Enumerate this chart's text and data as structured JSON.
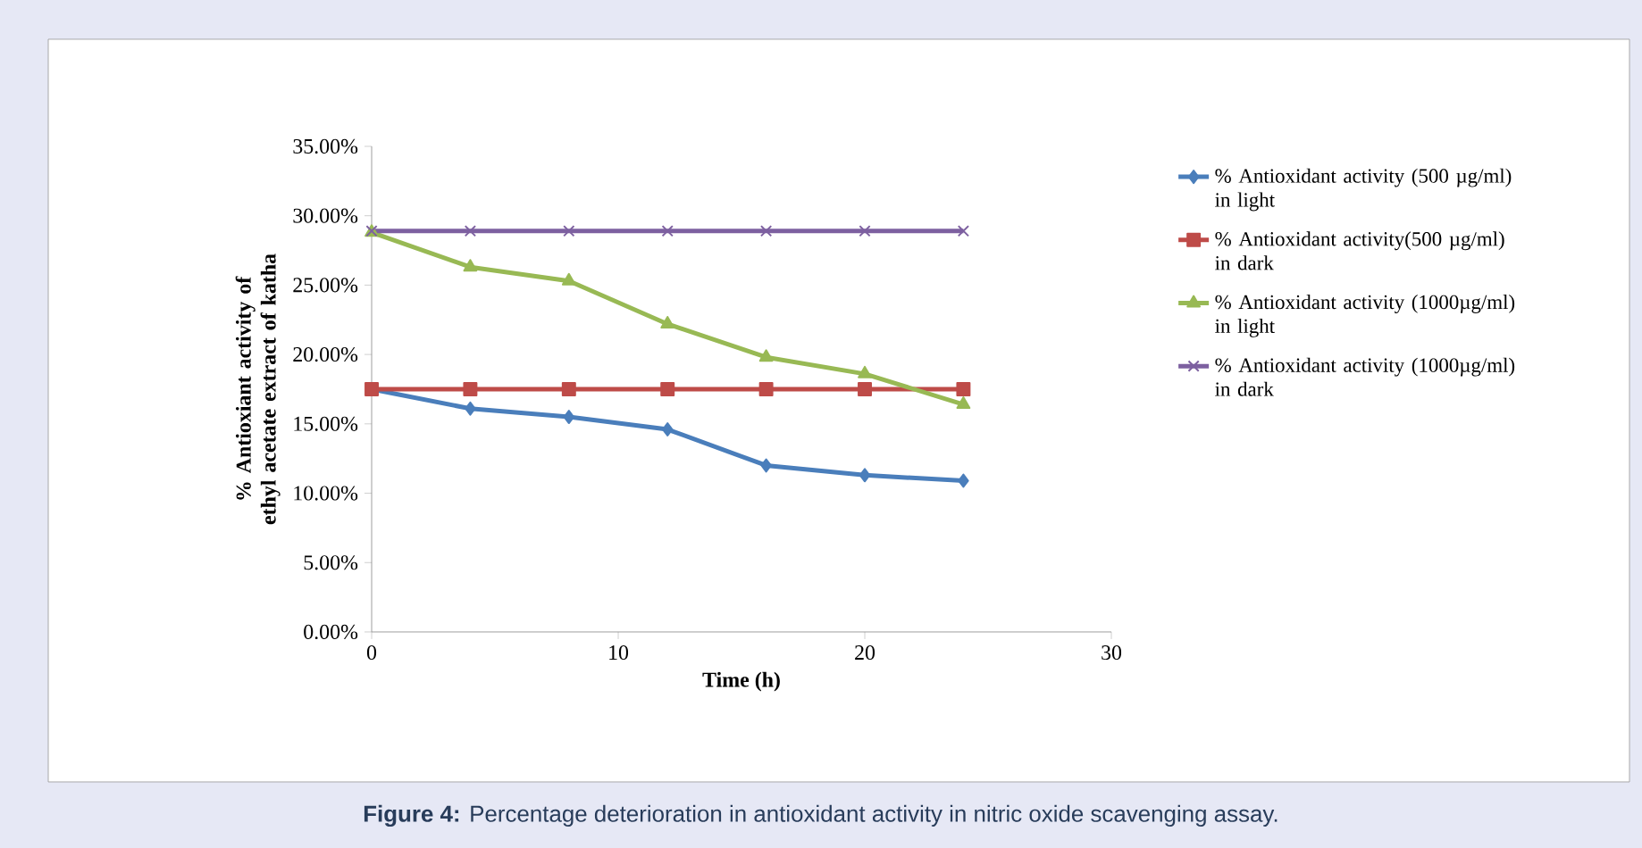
{
  "chart_data": {
    "type": "line",
    "xlabel": "Time (h)",
    "ylabel": "% Antioxiant activity of ethyl acetate extract of katha",
    "x": [
      0,
      4,
      8,
      12,
      16,
      20,
      24
    ],
    "series": [
      {
        "name": "% Antioxidant activity (500 µg/ml) in light",
        "color": "#4a7ebb",
        "marker": "diamond",
        "values": [
          17.5,
          16.1,
          15.5,
          14.6,
          12.0,
          11.3,
          10.9
        ]
      },
      {
        "name": "% Antioxidant activity(500 µg/ml) in dark",
        "color": "#be4b48",
        "marker": "square",
        "values": [
          17.5,
          17.5,
          17.5,
          17.5,
          17.5,
          17.5,
          17.5
        ]
      },
      {
        "name": "% Antioxidant activity (1000µg/ml) in light",
        "color": "#98b954",
        "marker": "triangle",
        "values": [
          28.8,
          26.3,
          25.3,
          22.2,
          19.8,
          18.6,
          16.4
        ]
      },
      {
        "name": "% Antioxidant activity (1000µg/ml) in dark",
        "color": "#7d60a0",
        "marker": "cross",
        "values": [
          28.9,
          28.9,
          28.9,
          28.9,
          28.9,
          28.9,
          28.9
        ]
      }
    ],
    "xlim": [
      0,
      30
    ],
    "xticks": [
      0,
      10,
      20,
      30
    ],
    "ylim": [
      0,
      35
    ],
    "yticks": [
      {
        "value": 0,
        "label": "0.00%"
      },
      {
        "value": 5,
        "label": "5.00%"
      },
      {
        "value": 10,
        "label": "10.00%"
      },
      {
        "value": 15,
        "label": "15.00%"
      },
      {
        "value": 20,
        "label": "20.00%"
      },
      {
        "value": 25,
        "label": "25.00%"
      },
      {
        "value": 30,
        "label": "30.00%"
      },
      {
        "value": 35,
        "label": "35.00%"
      }
    ],
    "legend": "right",
    "grid": false,
    "annotations": [
      "**Figure 4:** Percentage deterioration in antioxidant activity in nitric oxide scavenging assay."
    ]
  }
}
